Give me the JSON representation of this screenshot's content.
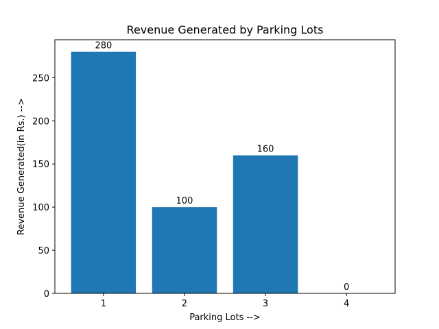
{
  "chart_data": {
    "type": "bar",
    "title": "Revenue Generated by Parking Lots",
    "xlabel": "Parking Lots -->",
    "ylabel": "Revenue Generated(in Rs.) -->",
    "categories": [
      "1",
      "2",
      "3",
      "4"
    ],
    "values": [
      280,
      100,
      160,
      0
    ],
    "data_labels": [
      "280",
      "100",
      "160",
      "0"
    ],
    "ylim": [
      0,
      294
    ],
    "yticks": [
      0,
      50,
      100,
      150,
      200,
      250
    ],
    "bar_color": "#1f77b4",
    "grid": false,
    "legend": "none"
  }
}
